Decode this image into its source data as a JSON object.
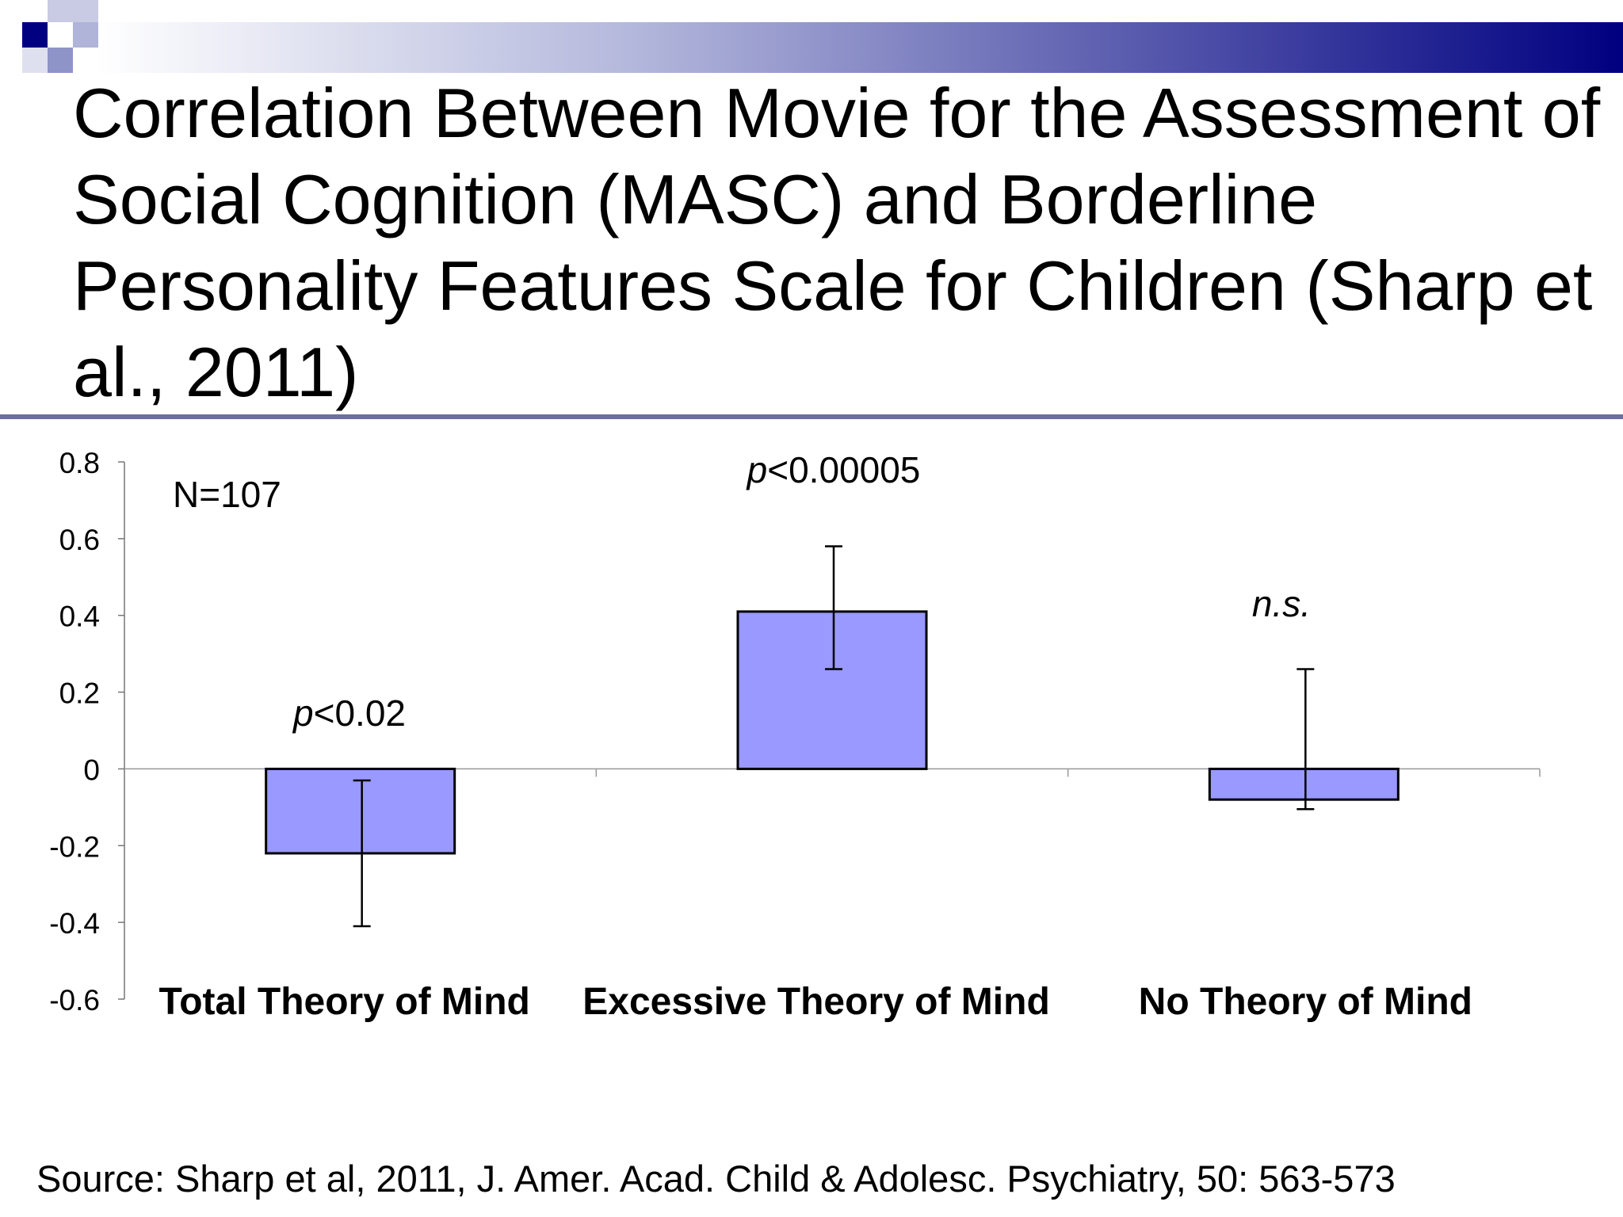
{
  "slide": {
    "title": "Correlation Between Movie for the Assessment of Social Cognition (MASC) and Borderline Personality Features Scale for Children (Sharp et al., 2011)",
    "source": "Source: Sharp et al, 2011, J. Amer. Acad. Child & Adolesc. Psychiatry, 50: 563-573",
    "colors": {
      "header_dark": "#000080",
      "header_mid": "#7f86c0",
      "rule": "#6b6fa2"
    }
  },
  "chart_data": {
    "type": "bar",
    "title": "",
    "xlabel": "",
    "ylabel": "",
    "categories": [
      "Total Theory of Mind",
      "Excessive Theory of Mind",
      "No Theory of Mind"
    ],
    "series": [
      {
        "values": [
          -0.22,
          0.41,
          -0.08
        ],
        "error_low": [
          -0.41,
          0.26,
          -0.105
        ],
        "error_high": [
          -0.03,
          0.58,
          0.26
        ]
      }
    ],
    "bar_color": "#9999ff",
    "ylim": [
      -0.6,
      0.8
    ],
    "yticks": [
      "0.8",
      "0.6",
      "0.4",
      "0.2",
      "0",
      "-0.2",
      "-0.4",
      "-0.6"
    ],
    "ytick_values": [
      0.8,
      0.6,
      0.4,
      0.2,
      0,
      -0.2,
      -0.4,
      -0.6
    ],
    "grid": false,
    "annotations": {
      "n": "N=107",
      "p_labels": [
        {
          "italic": "p",
          "text": "<0.02"
        },
        {
          "italic": "p",
          "text": "<0.00005"
        },
        {
          "italic": "",
          "text": "n.s."
        }
      ]
    }
  }
}
